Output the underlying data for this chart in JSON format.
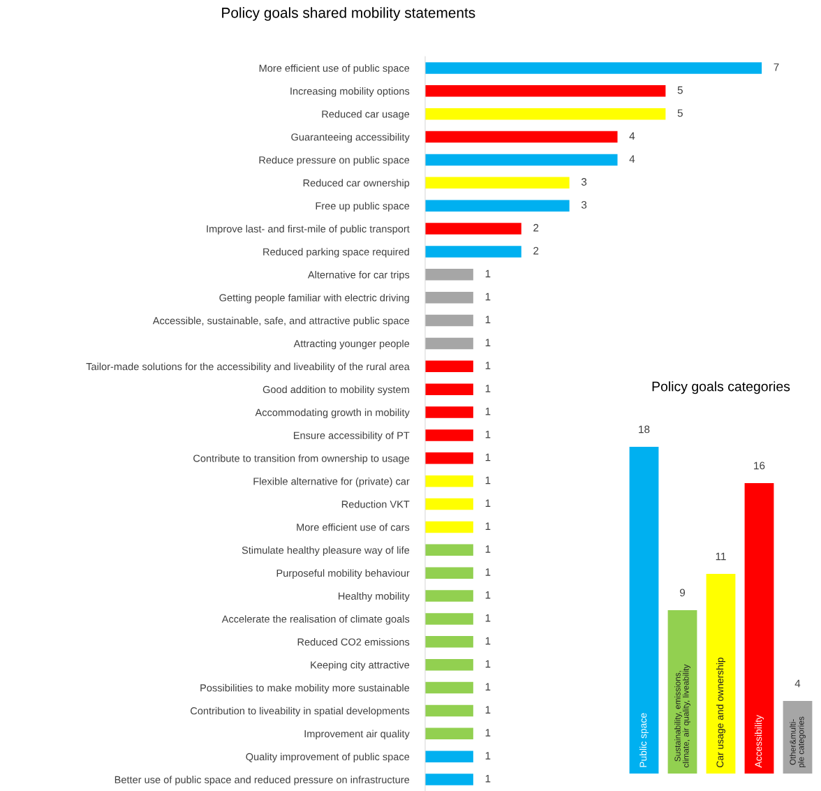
{
  "chart_data": [
    {
      "type": "bar",
      "orientation": "horizontal",
      "title": "Policy goals shared mobility statements",
      "relative": false,
      "data_labels": true,
      "tick_labels": "y",
      "categories": [
        "More efficient use of public space",
        "Increasing mobility options",
        "Reduced car usage",
        "Guaranteeing accessibility",
        "Reduce pressure on public space",
        "Reduced car ownership",
        "Free up public space",
        "Improve last- and first-mile of public transport",
        "Reduced parking space required",
        "Alternative for car trips",
        "Getting people familiar with electric driving",
        "Accessible, sustainable, safe, and attractive public space",
        "Attracting younger people",
        "Tailor-made solutions for the accessibility and liveability of the rural area",
        "Good addition to mobility system",
        "Accommodating growth in mobility",
        "Ensure accessibility of PT",
        "Contribute to transition from ownership to usage",
        "Flexible alternative for (private) car",
        "Reduction VKT",
        "More efficient use of cars",
        "Stimulate healthy pleasure way of life",
        "Purposeful mobility behaviour",
        "Healthy mobility",
        "Accelerate the realisation of climate goals",
        "Reduced CO2 emissions",
        "Keeping city attractive",
        "Possibilities to make mobility more sustainable",
        "Contribution to liveability in spatial developments",
        "Improvement air quality",
        "Quality improvement of public space",
        "Better use of public space and reduced pressure on infrastructure"
      ],
      "values": [
        7,
        5,
        5,
        4,
        4,
        3,
        3,
        2,
        2,
        1,
        1,
        1,
        1,
        1,
        1,
        1,
        1,
        1,
        1,
        1,
        1,
        1,
        1,
        1,
        1,
        1,
        1,
        1,
        1,
        1,
        1,
        1
      ],
      "colors": [
        "#00b0f0",
        "#ff0000",
        "#ffff00",
        "#ff0000",
        "#00b0f0",
        "#ffff00",
        "#00b0f0",
        "#ff0000",
        "#00b0f0",
        "#a6a6a6",
        "#a6a6a6",
        "#a6a6a6",
        "#a6a6a6",
        "#ff0000",
        "#ff0000",
        "#ff0000",
        "#ff0000",
        "#ff0000",
        "#ffff00",
        "#ffff00",
        "#ffff00",
        "#92d050",
        "#92d050",
        "#92d050",
        "#92d050",
        "#92d050",
        "#92d050",
        "#92d050",
        "#92d050",
        "#92d050",
        "#00b0f0",
        "#00b0f0"
      ]
    },
    {
      "type": "bar",
      "title": "Policy goals categories",
      "data_labels": true,
      "tick_labels": false,
      "categories": [
        "Public space",
        "Sustainability, emissions,\nclimate, air quality, liveability",
        "Car usage and ownership",
        "Accessibility",
        "Other&multi-\nple categories"
      ],
      "values": [
        18,
        9,
        11,
        16,
        4
      ],
      "colors": [
        "#00b0f0",
        "#92d050",
        "#ffff00",
        "#ff0000",
        "#a6a6a6"
      ]
    }
  ]
}
